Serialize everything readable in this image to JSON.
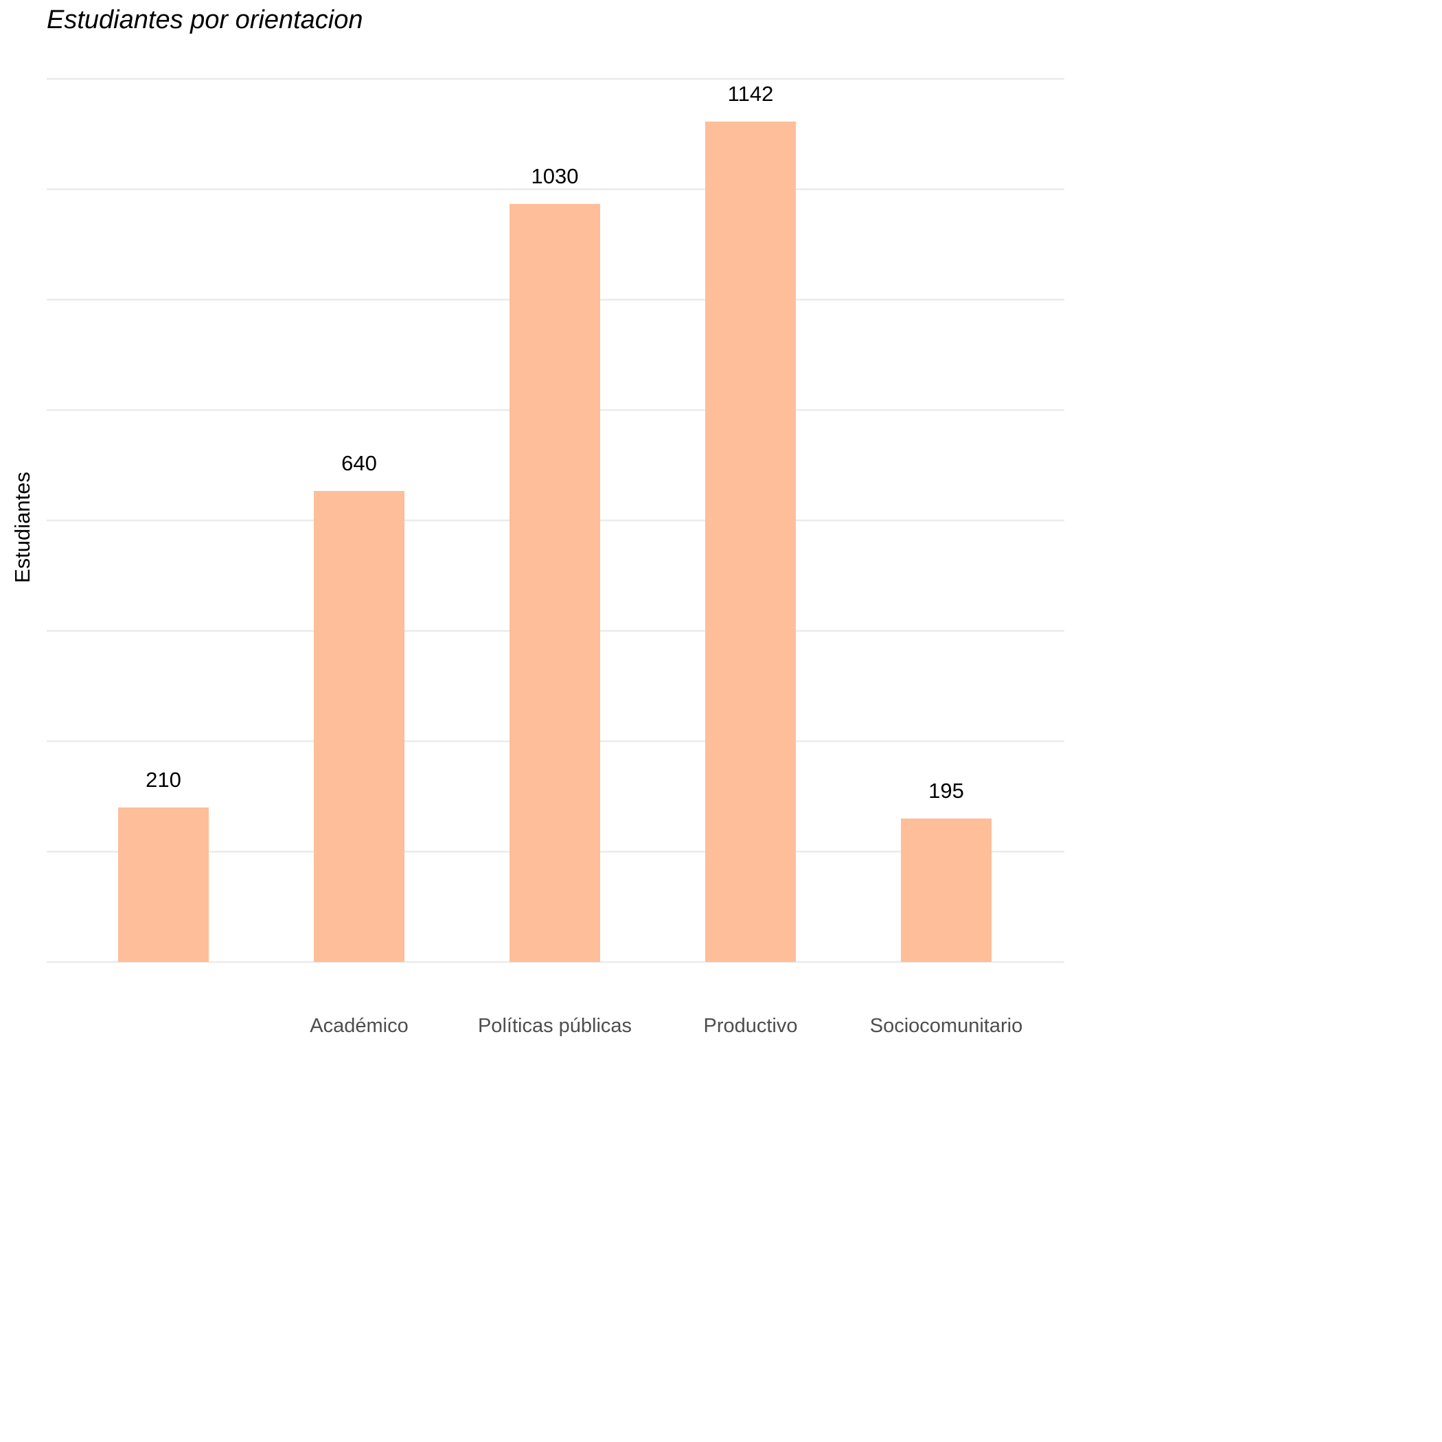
{
  "chart_data": {
    "type": "bar",
    "title": "Estudiantes por orientacion",
    "xlabel": "",
    "ylabel": "Estudiantes",
    "categories": [
      "",
      "Académico",
      "Políticas públicas",
      "Productivo",
      "Sociocomunitario"
    ],
    "values": [
      210,
      640,
      1030,
      1142,
      195
    ],
    "data_labels": [
      "210",
      "640",
      "1030",
      "1142",
      "195"
    ],
    "ylim": [
      0,
      1200
    ],
    "y_tick_labels_shown": false,
    "grid": true,
    "legend": "none",
    "bar_color": "#fdbe99",
    "grid_color": "#ebebeb"
  }
}
